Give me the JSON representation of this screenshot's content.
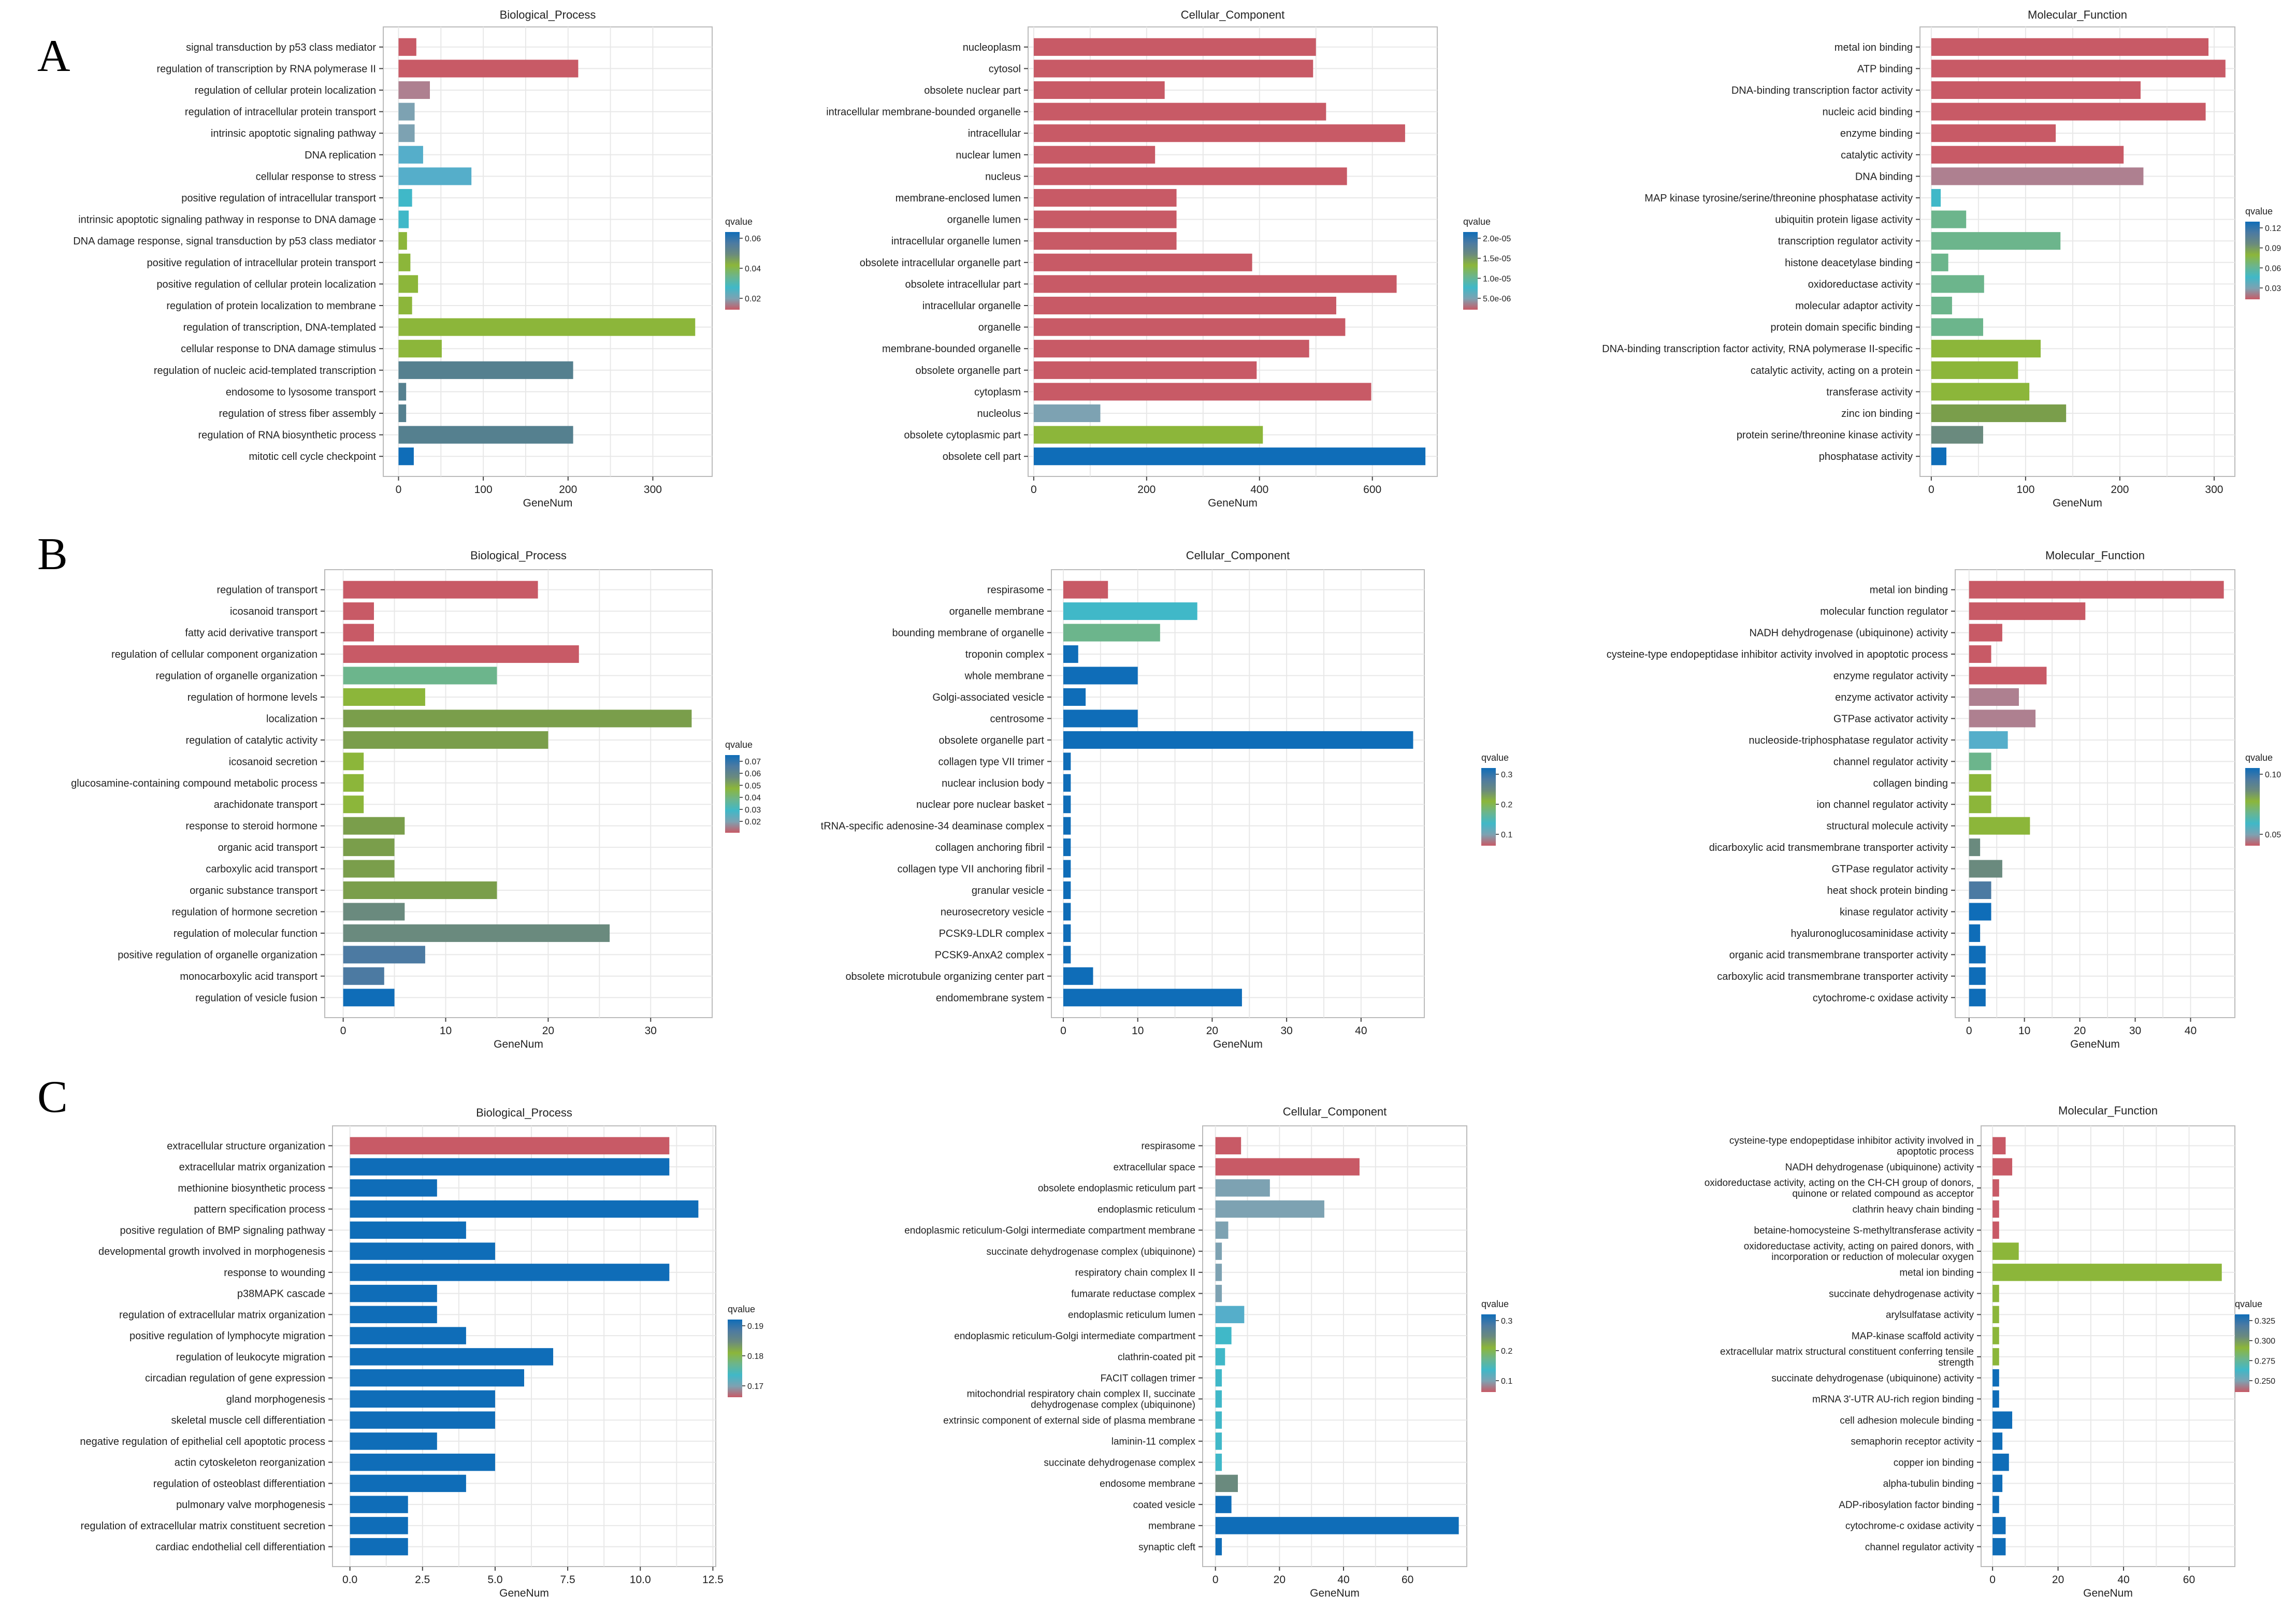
{
  "row_labels": [
    "A",
    "B",
    "C"
  ],
  "legend_title": "qvalue",
  "xlabel": "GeneNum",
  "colors": {
    "red": "#C85A66",
    "mauve": "#AE8090",
    "purple": "#9C8196",
    "grayblue": "#7DA2B2",
    "sky": "#55AECA",
    "teal": "#40B8C8",
    "mint": "#6CB58C",
    "green": "#7BB561",
    "lime": "#8CB63A",
    "olive": "#7A9E4B",
    "sage": "#6A8A7E",
    "slate": "#55808F",
    "steel": "#4C7AA2",
    "blue": "#0F6DB8",
    "axis": "#444444",
    "grid": "#E8E8E8",
    "frame": "#BBBBBB"
  },
  "chart_data": [
    {
      "type": "bar",
      "orientation": "horizontal",
      "title": "Biological_Process",
      "xlabel": "GeneNum",
      "categories": [
        "signal transduction by p53 class mediator",
        "regulation of transcription by RNA polymerase II",
        "regulation of cellular protein localization",
        "regulation of intracellular protein transport",
        "intrinsic apoptotic signaling pathway",
        "DNA replication",
        "cellular response to stress",
        "positive regulation of intracellular transport",
        "intrinsic apoptotic signaling pathway in response to DNA damage",
        "DNA damage response, signal transduction by p53 class mediator",
        "positive regulation of intracellular protein transport",
        "positive regulation of cellular protein localization",
        "regulation of protein localization to membrane",
        "regulation of transcription, DNA-templated",
        "cellular response to DNA damage stimulus",
        "regulation of nucleic acid-templated transcription",
        "endosome to lysosome transport",
        "regulation of stress fiber assembly",
        "regulation of RNA biosynthetic process",
        "mitotic cell cycle checkpoint"
      ],
      "values": [
        21,
        212,
        37,
        19,
        19,
        29,
        86,
        16,
        12,
        10,
        14,
        23,
        16,
        350,
        51,
        206,
        9,
        9,
        206,
        18
      ],
      "colors": [
        "red",
        "red",
        "mauve",
        "grayblue",
        "grayblue",
        "sky",
        "sky",
        "teal",
        "teal",
        "lime",
        "lime",
        "lime",
        "lime",
        "lime",
        "lime",
        "slate",
        "slate",
        "slate",
        "slate",
        "blue"
      ],
      "xlim": [
        -18,
        370
      ],
      "xticks": [
        0,
        100,
        200,
        300
      ],
      "xtick_labels": [
        "0",
        "100",
        "200",
        "300"
      ],
      "legend": {
        "title": "qvalue",
        "ticks": [
          "0.06",
          "0.04",
          "0.02"
        ]
      }
    },
    {
      "type": "bar",
      "orientation": "horizontal",
      "title": "Cellular_Component",
      "xlabel": "GeneNum",
      "categories": [
        "nucleoplasm",
        "cytosol",
        "obsolete nuclear part",
        "intracellular membrane-bounded organelle",
        "intracellular",
        "nuclear lumen",
        "nucleus",
        "membrane-enclosed lumen",
        "organelle lumen",
        "intracellular organelle lumen",
        "obsolete intracellular organelle part",
        "obsolete intracellular part",
        "intracellular organelle",
        "organelle",
        "membrane-bounded organelle",
        "obsolete organelle part",
        "cytoplasm",
        "nucleolus",
        "obsolete cytoplasmic part",
        "obsolete cell part"
      ],
      "values": [
        500,
        495,
        232,
        518,
        658,
        215,
        555,
        253,
        253,
        253,
        387,
        643,
        536,
        552,
        488,
        395,
        598,
        118,
        406,
        694
      ],
      "colors": [
        "red",
        "red",
        "red",
        "red",
        "red",
        "red",
        "red",
        "red",
        "red",
        "red",
        "red",
        "red",
        "red",
        "red",
        "red",
        "red",
        "red",
        "grayblue",
        "lime",
        "blue"
      ],
      "xlim": [
        -10,
        715
      ],
      "xticks": [
        0,
        200,
        400,
        600
      ],
      "xtick_labels": [
        "0",
        "200",
        "400",
        "600"
      ],
      "legend": {
        "title": "qvalue",
        "ticks": [
          "2.0e-05",
          "1.5e-05",
          "1.0e-05",
          "5.0e-06"
        ]
      }
    },
    {
      "type": "bar",
      "orientation": "horizontal",
      "title": "Molecular_Function",
      "xlabel": "GeneNum",
      "categories": [
        "metal ion binding",
        "ATP binding",
        "DNA-binding transcription factor activity",
        "nucleic acid binding",
        "enzyme binding",
        "catalytic activity",
        "DNA binding",
        "MAP kinase tyrosine/serine/threonine phosphatase activity",
        "ubiquitin protein ligase activity",
        "transcription regulator activity",
        "histone deacetylase binding",
        "oxidoreductase activity",
        "molecular adaptor activity",
        "protein domain specific binding",
        "DNA-binding transcription factor activity, RNA polymerase II-specific",
        "catalytic activity, acting on a protein",
        "transferase activity",
        "zinc ion binding",
        "protein serine/threonine kinase activity",
        "phosphatase activity"
      ],
      "values": [
        294,
        312,
        222,
        291,
        132,
        204,
        225,
        10,
        37,
        137,
        18,
        56,
        22,
        55,
        116,
        92,
        104,
        143,
        55,
        16
      ],
      "colors": [
        "red",
        "red",
        "red",
        "red",
        "red",
        "red",
        "mauve",
        "teal",
        "mint",
        "mint",
        "mint",
        "mint",
        "mint",
        "mint",
        "lime",
        "lime",
        "lime",
        "olive",
        "sage",
        "blue"
      ],
      "xlim": [
        -12,
        322
      ],
      "xticks": [
        0,
        100,
        200,
        300
      ],
      "xtick_labels": [
        "0",
        "100",
        "200",
        "300"
      ],
      "legend": {
        "title": "qvalue",
        "ticks": [
          "0.12",
          "0.09",
          "0.06",
          "0.03"
        ]
      }
    },
    {
      "type": "bar",
      "orientation": "horizontal",
      "title": "Biological_Process",
      "xlabel": "GeneNum",
      "categories": [
        "regulation of transport",
        "icosanoid transport",
        "fatty acid derivative transport",
        "regulation of cellular component organization",
        "regulation of organelle organization",
        "regulation of hormone levels",
        "localization",
        "regulation of catalytic activity",
        "icosanoid secretion",
        "glucosamine-containing compound metabolic process",
        "arachidonate transport",
        "response to steroid hormone",
        "organic acid transport",
        "carboxylic acid transport",
        "organic substance transport",
        "regulation of hormone secretion",
        "regulation of molecular function",
        "positive regulation of organelle organization",
        "monocarboxylic acid transport",
        "regulation of vesicle fusion"
      ],
      "values": [
        19,
        3,
        3,
        23,
        15,
        8,
        34,
        20,
        2,
        2,
        2,
        6,
        5,
        5,
        15,
        6,
        26,
        8,
        4,
        5
      ],
      "colors": [
        "red",
        "red",
        "red",
        "red",
        "mint",
        "lime",
        "olive",
        "olive",
        "lime",
        "lime",
        "lime",
        "olive",
        "olive",
        "olive",
        "olive",
        "sage",
        "sage",
        "steel",
        "steel",
        "blue"
      ],
      "xlim": [
        -1.8,
        36
      ],
      "xticks": [
        0,
        10,
        20,
        30
      ],
      "xtick_labels": [
        "0",
        "10",
        "20",
        "30"
      ],
      "legend": {
        "title": "qvalue",
        "ticks": [
          "0.07",
          "0.06",
          "0.05",
          "0.04",
          "0.03",
          "0.02"
        ]
      }
    },
    {
      "type": "bar",
      "orientation": "horizontal",
      "title": "Cellular_Component",
      "xlabel": "GeneNum",
      "categories": [
        "respirasome",
        "organelle membrane",
        "bounding membrane of organelle",
        "troponin complex",
        "whole membrane",
        "Golgi-associated vesicle",
        "centrosome",
        "obsolete organelle part",
        "collagen type VII trimer",
        "nuclear inclusion body",
        "nuclear pore nuclear basket",
        "tRNA-specific adenosine-34 deaminase complex",
        "collagen anchoring fibril",
        "collagen type VII anchoring fibril",
        "granular vesicle",
        "neurosecretory vesicle",
        "PCSK9-LDLR complex",
        "PCSK9-AnxA2 complex",
        "obsolete microtubule organizing center part",
        "endomembrane system"
      ],
      "values": [
        6,
        18,
        13,
        2,
        10,
        3,
        10,
        47,
        1,
        1,
        1,
        1,
        1,
        1,
        1,
        1,
        1,
        1,
        4,
        24
      ],
      "colors": [
        "red",
        "teal",
        "mint",
        "blue",
        "blue",
        "blue",
        "blue",
        "blue",
        "blue",
        "blue",
        "blue",
        "blue",
        "blue",
        "blue",
        "blue",
        "blue",
        "blue",
        "blue",
        "blue",
        "blue"
      ],
      "xlim": [
        -1.6,
        48.5
      ],
      "xticks": [
        0,
        10,
        20,
        30,
        40
      ],
      "xtick_labels": [
        "0",
        "10",
        "20",
        "30",
        "40"
      ],
      "legend": {
        "title": "qvalue",
        "ticks": [
          "0.3",
          "0.2",
          "0.1"
        ]
      }
    },
    {
      "type": "bar",
      "orientation": "horizontal",
      "title": "Molecular_Function",
      "xlabel": "GeneNum",
      "categories": [
        "metal ion binding",
        "molecular function regulator",
        "NADH dehydrogenase (ubiquinone) activity",
        "cysteine-type endopeptidase inhibitor activity involved in apoptotic process",
        "enzyme regulator activity",
        "enzyme activator activity",
        "GTPase activator activity",
        "nucleoside-triphosphatase regulator activity",
        "channel regulator activity",
        "collagen binding",
        "ion channel regulator activity",
        "structural molecule activity",
        "dicarboxylic acid transmembrane transporter activity",
        "GTPase regulator activity",
        "heat shock protein binding",
        "kinase regulator activity",
        "hyaluronoglucosaminidase activity",
        "organic acid transmembrane transporter activity",
        "carboxylic acid transmembrane transporter activity",
        "cytochrome-c oxidase activity"
      ],
      "values": [
        46,
        21,
        6,
        4,
        14,
        9,
        12,
        7,
        4,
        4,
        4,
        11,
        2,
        6,
        4,
        4,
        2,
        3,
        3,
        3
      ],
      "colors": [
        "red",
        "red",
        "red",
        "red",
        "red",
        "mauve",
        "mauve",
        "sky",
        "mint",
        "lime",
        "lime",
        "lime",
        "sage",
        "sage",
        "steel",
        "blue",
        "blue",
        "blue",
        "blue",
        "blue"
      ],
      "xlim": [
        -2.5,
        48
      ],
      "xticks": [
        0,
        10,
        20,
        30,
        40
      ],
      "xtick_labels": [
        "0",
        "10",
        "20",
        "30",
        "40"
      ],
      "legend": {
        "title": "qvalue",
        "ticks": [
          "0.10",
          "0.05"
        ]
      }
    },
    {
      "type": "bar",
      "orientation": "horizontal",
      "title": "Biological_Process",
      "xlabel": "GeneNum",
      "categories": [
        "extracellular structure organization",
        "extracellular matrix organization",
        "methionine biosynthetic process",
        "pattern specification process",
        "positive regulation of BMP signaling pathway",
        "developmental growth involved in morphogenesis",
        "response to wounding",
        "p38MAPK cascade",
        "regulation of extracellular matrix organization",
        "positive regulation of lymphocyte migration",
        "regulation of leukocyte migration",
        "circadian regulation of gene expression",
        "gland morphogenesis",
        "skeletal muscle cell differentiation",
        "negative regulation of epithelial cell apoptotic process",
        "actin cytoskeleton reorganization",
        "regulation of osteoblast differentiation",
        "pulmonary valve morphogenesis",
        "regulation of extracellular matrix constituent secretion",
        "cardiac endothelial cell differentiation"
      ],
      "values": [
        11,
        11,
        3,
        12,
        4,
        5,
        11,
        3,
        3,
        4,
        7,
        6,
        5,
        5,
        3,
        5,
        4,
        2,
        2,
        2
      ],
      "colors": [
        "red",
        "blue",
        "blue",
        "blue",
        "blue",
        "blue",
        "blue",
        "blue",
        "blue",
        "blue",
        "blue",
        "blue",
        "blue",
        "blue",
        "blue",
        "blue",
        "blue",
        "blue",
        "blue",
        "blue"
      ],
      "xlim": [
        -0.6,
        12.6
      ],
      "xticks": [
        0,
        2.5,
        5,
        7.5,
        10,
        12.5
      ],
      "xtick_labels": [
        "0.0",
        "2.5",
        "5.0",
        "7.5",
        "10.0",
        "12.5"
      ],
      "legend": {
        "title": "qvalue",
        "ticks": [
          "0.19",
          "0.18",
          "0.17"
        ]
      }
    },
    {
      "type": "bar",
      "orientation": "horizontal",
      "title": "Cellular_Component",
      "xlabel": "GeneNum",
      "categories": [
        "respirasome",
        "extracellular space",
        "obsolete endoplasmic reticulum part",
        "endoplasmic reticulum",
        "endoplasmic reticulum-Golgi intermediate compartment membrane",
        "succinate dehydrogenase complex (ubiquinone)",
        "respiratory chain complex II",
        "fumarate reductase complex",
        "endoplasmic reticulum lumen",
        "endoplasmic reticulum-Golgi intermediate compartment",
        "clathrin-coated pit",
        "FACIT collagen trimer",
        "mitochondrial respiratory chain complex II, succinate dehydrogenase complex (ubiquinone)",
        "extrinsic component of external side of plasma membrane",
        "laminin-11 complex",
        "succinate dehydrogenase complex",
        "endosome membrane",
        "coated vesicle",
        "membrane",
        "synaptic cleft"
      ],
      "values": [
        8,
        45,
        17,
        34,
        4,
        2,
        2,
        2,
        9,
        5,
        3,
        2,
        2,
        2,
        2,
        2,
        7,
        5,
        76,
        2
      ],
      "colors": [
        "red",
        "red",
        "grayblue",
        "grayblue",
        "grayblue",
        "grayblue",
        "grayblue",
        "grayblue",
        "sky",
        "teal",
        "teal",
        "teal",
        "teal",
        "teal",
        "teal",
        "teal",
        "sage",
        "blue",
        "blue",
        "blue"
      ],
      "xlim": [
        -4,
        78.5
      ],
      "xticks": [
        0,
        20,
        40,
        60
      ],
      "xtick_labels": [
        "0",
        "20",
        "40",
        "60"
      ],
      "legend": {
        "title": "qvalue",
        "ticks": [
          "0.3",
          "0.2",
          "0.1"
        ]
      }
    },
    {
      "type": "bar",
      "orientation": "horizontal",
      "title": "Molecular_Function",
      "xlabel": "GeneNum",
      "categories": [
        "cysteine-type endopeptidase inhibitor activity involved in apoptotic process",
        "NADH dehydrogenase (ubiquinone) activity",
        "oxidoreductase activity, acting on the CH-CH group of donors, quinone or related compound as acceptor",
        "clathrin heavy chain binding",
        "betaine-homocysteine S-methyltransferase activity",
        "oxidoreductase activity, acting on paired donors, with incorporation or reduction of molecular oxygen",
        "metal ion binding",
        "succinate dehydrogenase activity",
        "arylsulfatase activity",
        "MAP-kinase scaffold activity",
        "extracellular matrix structural constituent conferring tensile strength",
        "succinate dehydrogenase (ubiquinone) activity",
        "mRNA 3'-UTR AU-rich region binding",
        "cell adhesion molecule binding",
        "semaphorin receptor activity",
        "copper ion binding",
        "alpha-tubulin binding",
        "ADP-ribosylation factor binding",
        "cytochrome-c oxidase activity",
        "channel regulator activity"
      ],
      "values": [
        4,
        6,
        2,
        2,
        2,
        8,
        70,
        2,
        2,
        2,
        2,
        2,
        2,
        6,
        3,
        5,
        3,
        2,
        4,
        4
      ],
      "colors": [
        "red",
        "red",
        "red",
        "red",
        "red",
        "lime",
        "lime",
        "lime",
        "lime",
        "lime",
        "lime",
        "blue",
        "blue",
        "blue",
        "blue",
        "blue",
        "blue",
        "blue",
        "blue",
        "blue"
      ],
      "xlim": [
        -3.5,
        74
      ],
      "xticks": [
        0,
        20,
        40,
        60
      ],
      "xtick_labels": [
        "0",
        "20",
        "40",
        "60"
      ],
      "legend": {
        "title": "qvalue",
        "ticks": [
          "0.325",
          "0.300",
          "0.275",
          "0.250"
        ]
      }
    }
  ]
}
